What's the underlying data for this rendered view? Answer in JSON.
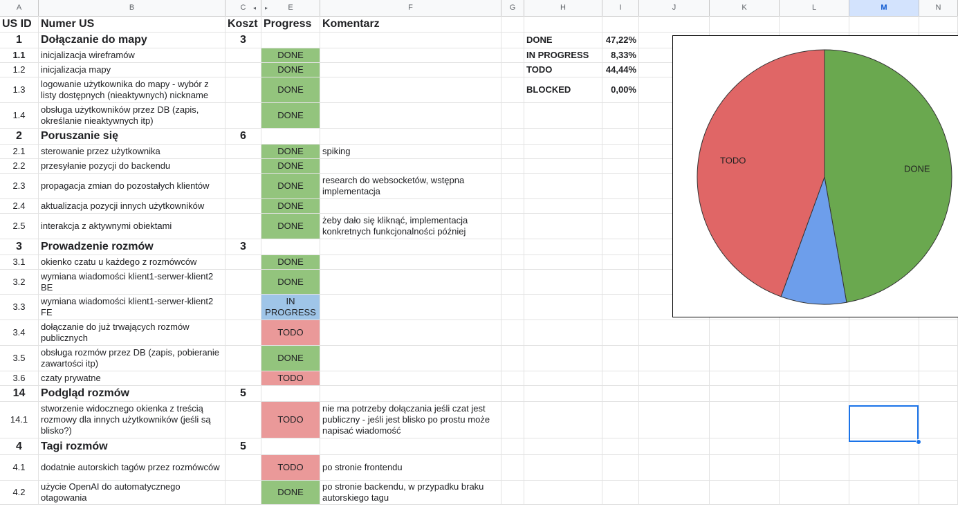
{
  "column_headers": [
    "A",
    "B",
    "C",
    "E",
    "F",
    "G",
    "H",
    "I",
    "J",
    "K",
    "L",
    "M",
    "N"
  ],
  "selected_column": "M",
  "colors": {
    "done": "#93c47d",
    "todo": "#ea9999",
    "in_progress": "#9fc5e8",
    "selection": "#1a73e8",
    "pie_done": "#6aa84f",
    "pie_todo": "#e06666",
    "pie_inprogress": "#6d9eeb"
  },
  "headers": {
    "us_id": "US ID",
    "numer_us": "Numer US",
    "koszt": "Koszt",
    "progress": "Progress",
    "komentarz": "Komentarz"
  },
  "rows": [
    {
      "type": "group",
      "id": "1",
      "name": "Dołączanie do mapy",
      "cost": "3"
    },
    {
      "type": "item",
      "id": "1.1",
      "bold_id": true,
      "name": "inicjalizacja wireframów",
      "status": "DONE",
      "comment": ""
    },
    {
      "type": "item",
      "id": "1.2",
      "name": "inicjalizacja mapy",
      "status": "DONE",
      "comment": ""
    },
    {
      "type": "item",
      "id": "1.3",
      "name": "logowanie użytkownika do mapy - wybór z listy dostępnych (nieaktywnych) nickname",
      "status": "DONE",
      "comment": ""
    },
    {
      "type": "item",
      "id": "1.4",
      "name": "obsługa użytkowników przez DB (zapis, określanie nieaktywnych itp)",
      "status": "DONE",
      "comment": ""
    },
    {
      "type": "group",
      "id": "2",
      "name": "Poruszanie się",
      "cost": "6"
    },
    {
      "type": "item",
      "id": "2.1",
      "name": "sterowanie przez użytkownika",
      "status": "DONE",
      "comment": "spiking"
    },
    {
      "type": "item",
      "id": "2.2",
      "name": "przesyłanie pozycji do backendu",
      "status": "DONE",
      "comment": ""
    },
    {
      "type": "item",
      "id": "2.3",
      "name": "propagacja zmian do pozostałych klientów",
      "status": "DONE",
      "comment": "research do websocketów, wstępna implementacja"
    },
    {
      "type": "item",
      "id": "2.4",
      "name": "aktualizacja pozycji innych użytkowników",
      "status": "DONE",
      "comment": ""
    },
    {
      "type": "item",
      "id": "2.5",
      "name": "interakcja z aktywnymi obiektami",
      "status": "DONE",
      "comment": "żeby dało się kliknąć, implementacja konkretnych funkcjonalności później"
    },
    {
      "type": "group",
      "id": "3",
      "name": "Prowadzenie rozmów",
      "cost": "3"
    },
    {
      "type": "item",
      "id": "3.1",
      "name": "okienko czatu u każdego z rozmówców",
      "status": "DONE",
      "comment": ""
    },
    {
      "type": "item",
      "id": "3.2",
      "name": "wymiana wiadomości klient1-serwer-klient2 BE",
      "status": "DONE",
      "comment": ""
    },
    {
      "type": "item",
      "id": "3.3",
      "name": "wymiana wiadomości klient1-serwer-klient2 FE",
      "status": "IN PROGRESS",
      "comment": ""
    },
    {
      "type": "item",
      "id": "3.4",
      "name": "dołączanie do już trwających rozmów publicznych",
      "status": "TODO",
      "comment": ""
    },
    {
      "type": "item",
      "id": "3.5",
      "name": "obsługa rozmów przez DB (zapis, pobieranie zawartości itp)",
      "status": "DONE",
      "comment": ""
    },
    {
      "type": "item",
      "id": "3.6",
      "name": "czaty prywatne",
      "status": "TODO",
      "comment": ""
    },
    {
      "type": "group",
      "id": "14",
      "name": "Podgląd rozmów",
      "cost": "5"
    },
    {
      "type": "item",
      "id": "14.1",
      "name": "stworzenie widocznego okienka z treścią rozmowy dla innych użytkowników (jeśli są blisko?)",
      "status": "TODO",
      "comment": "nie ma potrzeby dołączania jeśli czat jest publiczny - jeśli jest blisko po prostu może napisać wiadomość"
    },
    {
      "type": "group",
      "id": "4",
      "name": "Tagi rozmów",
      "cost": "5"
    },
    {
      "type": "item",
      "id": "4.1",
      "name": "dodatnie autorskich tagów przez rozmówców",
      "status": "TODO",
      "comment": "po stronie frontendu"
    },
    {
      "type": "item",
      "id": "4.2",
      "name": "użycie OpenAI do automatycznego otagowania",
      "status": "DONE",
      "comment": "po stronie backendu, w przypadku braku autorskiego tagu"
    }
  ],
  "summary": [
    {
      "label": "DONE",
      "value": "47,22%"
    },
    {
      "label": "IN PROGRESS",
      "value": "8,33%"
    },
    {
      "label": "TODO",
      "value": "44,44%"
    },
    {
      "label": "BLOCKED",
      "value": "0,00%"
    }
  ],
  "chart_data": {
    "type": "pie",
    "slices": [
      {
        "label": "DONE",
        "value": 47.22,
        "color": "#6aa84f"
      },
      {
        "label": "IN PROGRESS",
        "value": 8.33,
        "color": "#6d9eeb"
      },
      {
        "label": "TODO",
        "value": 44.44,
        "color": "#e06666"
      },
      {
        "label": "BLOCKED",
        "value": 0.0,
        "color": "#f6b26b"
      }
    ],
    "slice_labels": [
      "DONE",
      "TODO"
    ]
  }
}
